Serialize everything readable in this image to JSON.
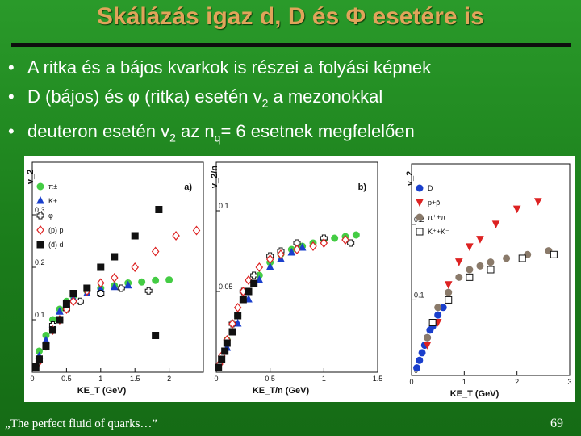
{
  "slide": {
    "title": "Skálázás igaz d, D és Φ esetére is",
    "bullets": [
      {
        "bullet": "•",
        "text": "A ritka és a bájos kvarkok is részei a folyási képnek"
      },
      {
        "bullet": "•",
        "pre": "D (bájos) és φ (ritka) esetén v",
        "sub": "2",
        "post": " a mezonokkal"
      },
      {
        "bullet": "•",
        "pre": "deuteron esetén v",
        "sub": "2",
        "mid": " az n",
        "sub2": "q",
        "post": "= 6 esetnek megfelelően"
      }
    ],
    "footer_left": "„The perfect fluid of quarks…”",
    "footer_right": "69"
  },
  "colors": {
    "background": "#1f8a1f",
    "title": "#e0a45a",
    "rule": "#0e0e0e",
    "pion": "#44cc44",
    "kaon": "#1a3fcc",
    "proton": "#dd2222",
    "deuteron": "#111111",
    "d_meson": "#1a3fcc"
  },
  "chart_data": [
    {
      "type": "scatter",
      "panel_label": "a)",
      "xlabel": "KE_T (GeV)",
      "ylabel": "v_2",
      "xlim": [
        0,
        2.5
      ],
      "ylim": [
        0,
        0.4
      ],
      "x_ticks": [
        "0",
        "0.5",
        "1",
        "1.5",
        "2"
      ],
      "y_ticks": [
        "0.1",
        "0.2",
        "0.3"
      ],
      "legend": [
        "π±",
        "K±",
        "φ",
        "(p̄) p",
        "(d̄) d"
      ],
      "series": [
        {
          "name": "π±",
          "marker": "circle-green",
          "points": [
            [
              0.1,
              0.04
            ],
            [
              0.2,
              0.07
            ],
            [
              0.3,
              0.1
            ],
            [
              0.4,
              0.12
            ],
            [
              0.5,
              0.135
            ],
            [
              0.6,
              0.145
            ],
            [
              0.8,
              0.155
            ],
            [
              1.0,
              0.16
            ],
            [
              1.2,
              0.165
            ],
            [
              1.4,
              0.17
            ],
            [
              1.6,
              0.172
            ],
            [
              1.8,
              0.175
            ],
            [
              2.0,
              0.176
            ]
          ]
        },
        {
          "name": "K±",
          "marker": "triangle-blue",
          "points": [
            [
              0.1,
              0.03
            ],
            [
              0.2,
              0.06
            ],
            [
              0.3,
              0.09
            ],
            [
              0.4,
              0.115
            ],
            [
              0.5,
              0.13
            ],
            [
              0.6,
              0.14
            ],
            [
              0.8,
              0.15
            ],
            [
              1.0,
              0.158
            ],
            [
              1.2,
              0.162
            ],
            [
              1.4,
              0.165
            ]
          ]
        },
        {
          "name": "φ",
          "marker": "cross-open",
          "points": [
            [
              0.3,
              0.09
            ],
            [
              0.5,
              0.12
            ],
            [
              0.7,
              0.135
            ],
            [
              1.0,
              0.15
            ],
            [
              1.3,
              0.16
            ],
            [
              1.7,
              0.155
            ]
          ]
        },
        {
          "name": "(p̄) p",
          "marker": "diamond-open-red",
          "points": [
            [
              0.05,
              0.01
            ],
            [
              0.1,
              0.02
            ],
            [
              0.2,
              0.05
            ],
            [
              0.3,
              0.08
            ],
            [
              0.4,
              0.1
            ],
            [
              0.5,
              0.12
            ],
            [
              0.6,
              0.135
            ],
            [
              0.8,
              0.155
            ],
            [
              1.0,
              0.17
            ],
            [
              1.2,
              0.18
            ],
            [
              1.5,
              0.2
            ],
            [
              1.8,
              0.23
            ],
            [
              2.1,
              0.26
            ],
            [
              2.4,
              0.27
            ]
          ]
        },
        {
          "name": "(d̄) d",
          "marker": "square-black",
          "points": [
            [
              0.05,
              0.01
            ],
            [
              0.1,
              0.025
            ],
            [
              0.2,
              0.05
            ],
            [
              0.3,
              0.08
            ],
            [
              0.4,
              0.1
            ],
            [
              0.5,
              0.13
            ],
            [
              0.6,
              0.15
            ],
            [
              0.8,
              0.16
            ],
            [
              1.0,
              0.2
            ],
            [
              1.2,
              0.22
            ],
            [
              1.5,
              0.26
            ],
            [
              1.85,
              0.31
            ],
            [
              1.8,
              0.07
            ]
          ]
        }
      ]
    },
    {
      "type": "scatter",
      "panel_label": "b)",
      "xlabel": "KE_T/n (GeV)",
      "ylabel": "v_2/n",
      "xlim": [
        0,
        1.5
      ],
      "ylim": [
        0,
        0.13
      ],
      "x_ticks": [
        "0",
        "0.5",
        "1",
        "1.5"
      ],
      "y_ticks": [
        "0.05",
        "0.1"
      ],
      "series": [
        {
          "name": "π±",
          "marker": "circle-green",
          "points": [
            [
              0.1,
              0.02
            ],
            [
              0.2,
              0.035
            ],
            [
              0.3,
              0.05
            ],
            [
              0.4,
              0.06
            ],
            [
              0.5,
              0.068
            ],
            [
              0.6,
              0.073
            ],
            [
              0.7,
              0.076
            ],
            [
              0.8,
              0.078
            ],
            [
              0.9,
              0.08
            ],
            [
              1.0,
              0.082
            ],
            [
              1.1,
              0.083
            ],
            [
              1.2,
              0.084
            ],
            [
              1.3,
              0.085
            ]
          ]
        },
        {
          "name": "K±",
          "marker": "triangle-blue",
          "points": [
            [
              0.1,
              0.015
            ],
            [
              0.2,
              0.03
            ],
            [
              0.3,
              0.045
            ],
            [
              0.4,
              0.057
            ],
            [
              0.5,
              0.065
            ],
            [
              0.6,
              0.07
            ],
            [
              0.7,
              0.074
            ],
            [
              0.8,
              0.077
            ]
          ]
        },
        {
          "name": "φ",
          "marker": "cross-open",
          "points": [
            [
              0.15,
              0.03
            ],
            [
              0.25,
              0.05
            ],
            [
              0.35,
              0.06
            ],
            [
              0.5,
              0.072
            ],
            [
              0.6,
              0.075
            ],
            [
              0.75,
              0.08
            ],
            [
              1.0,
              0.083
            ],
            [
              1.25,
              0.08
            ]
          ]
        },
        {
          "name": "(p̄) p",
          "marker": "diamond-open-red",
          "points": [
            [
              0.03,
              0.005
            ],
            [
              0.05,
              0.01
            ],
            [
              0.1,
              0.02
            ],
            [
              0.15,
              0.03
            ],
            [
              0.2,
              0.04
            ],
            [
              0.25,
              0.05
            ],
            [
              0.3,
              0.057
            ],
            [
              0.4,
              0.065
            ],
            [
              0.5,
              0.07
            ],
            [
              0.6,
              0.073
            ],
            [
              0.75,
              0.076
            ],
            [
              0.9,
              0.078
            ],
            [
              1.0,
              0.08
            ],
            [
              1.2,
              0.082
            ]
          ]
        },
        {
          "name": "(d̄) d",
          "marker": "square-black",
          "points": [
            [
              0.02,
              0.003
            ],
            [
              0.05,
              0.008
            ],
            [
              0.08,
              0.013
            ],
            [
              0.1,
              0.018
            ],
            [
              0.15,
              0.025
            ],
            [
              0.2,
              0.035
            ],
            [
              0.25,
              0.045
            ],
            [
              0.3,
              0.05
            ],
            [
              0.35,
              0.055
            ]
          ]
        }
      ]
    },
    {
      "type": "scatter",
      "panel_label": "",
      "xlabel": "KE_T (GeV)",
      "ylabel": "v_2",
      "xlim": [
        0,
        3
      ],
      "ylim": [
        0,
        0.28
      ],
      "x_ticks": [
        "0",
        "1",
        "2",
        "3"
      ],
      "y_ticks": [
        "0",
        "0.1",
        "0.2"
      ],
      "legend": [
        "D",
        "p+p̄",
        "π⁺+π⁻",
        "K⁺+K⁻"
      ],
      "series": [
        {
          "name": "D",
          "marker": "circle-blue",
          "points": [
            [
              0.1,
              0.01
            ],
            [
              0.15,
              0.02
            ],
            [
              0.2,
              0.03
            ],
            [
              0.25,
              0.04
            ],
            [
              0.3,
              0.05
            ],
            [
              0.35,
              0.06
            ],
            [
              0.4,
              0.065
            ],
            [
              0.45,
              0.07
            ],
            [
              0.5,
              0.08
            ],
            [
              0.6,
              0.09
            ],
            [
              0.7,
              0.1
            ]
          ]
        },
        {
          "name": "p+p̄",
          "marker": "triangle-down-red",
          "points": [
            [
              0.3,
              0.04
            ],
            [
              0.5,
              0.07
            ],
            [
              0.7,
              0.12
            ],
            [
              0.9,
              0.15
            ],
            [
              1.1,
              0.17
            ],
            [
              1.3,
              0.18
            ],
            [
              1.6,
              0.2
            ],
            [
              2.0,
              0.22
            ],
            [
              2.4,
              0.23
            ]
          ]
        },
        {
          "name": "π⁺+π⁻",
          "marker": "circle-grey",
          "points": [
            [
              0.3,
              0.05
            ],
            [
              0.5,
              0.09
            ],
            [
              0.7,
              0.11
            ],
            [
              0.9,
              0.13
            ],
            [
              1.1,
              0.14
            ],
            [
              1.3,
              0.145
            ],
            [
              1.5,
              0.15
            ],
            [
              1.8,
              0.155
            ],
            [
              2.2,
              0.16
            ],
            [
              2.6,
              0.165
            ]
          ]
        },
        {
          "name": "K⁺+K⁻",
          "marker": "square-open",
          "points": [
            [
              0.4,
              0.07
            ],
            [
              0.7,
              0.1
            ],
            [
              1.1,
              0.13
            ],
            [
              1.5,
              0.14
            ],
            [
              2.1,
              0.155
            ],
            [
              2.7,
              0.16
            ]
          ]
        }
      ]
    }
  ]
}
